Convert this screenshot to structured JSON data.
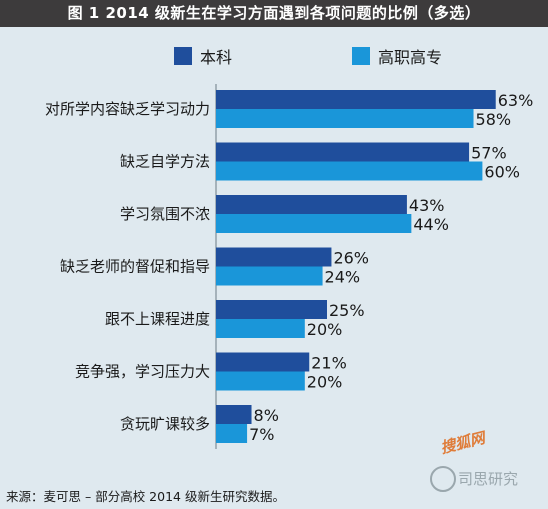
{
  "title": "图 1  2014 级新生在学习方面遇到各项问题的比例（多选）",
  "colors": {
    "title_bg": "#3d3b3c",
    "background": "#dfe9ef",
    "series_1": "#1f4e9c",
    "series_2": "#1a96d9"
  },
  "chart_data": {
    "type": "bar",
    "orientation": "horizontal",
    "title": "图 1  2014 级新生在学习方面遇到各项问题的比例（多选）",
    "categories": [
      "对所学内容缺乏学习动力",
      "缺乏自学方法",
      "学习氛围不浓",
      "缺乏老师的督促和指导",
      "跟不上课程进度",
      "竞争强，学习压力大",
      "贪玩旷课较多"
    ],
    "series": [
      {
        "name": "本科",
        "color": "#1f4e9c",
        "values": [
          63,
          57,
          43,
          26,
          25,
          21,
          8
        ],
        "labels": [
          "63%",
          "57%",
          "43%",
          "26%",
          "25%",
          "21%",
          "8%"
        ]
      },
      {
        "name": "高职高专",
        "color": "#1a96d9",
        "values": [
          58,
          60,
          44,
          24,
          20,
          20,
          7
        ],
        "labels": [
          "58%",
          "60%",
          "44%",
          "24%",
          "20%",
          "20%",
          "7%"
        ]
      }
    ],
    "xlim": [
      0,
      70
    ],
    "grid": false,
    "legend": "top"
  },
  "source": "来源：麦可思 – 部分高校 2014 级新生研究数据。",
  "watermark": {
    "text": "搜狐网",
    "subtext": "司思研究"
  }
}
